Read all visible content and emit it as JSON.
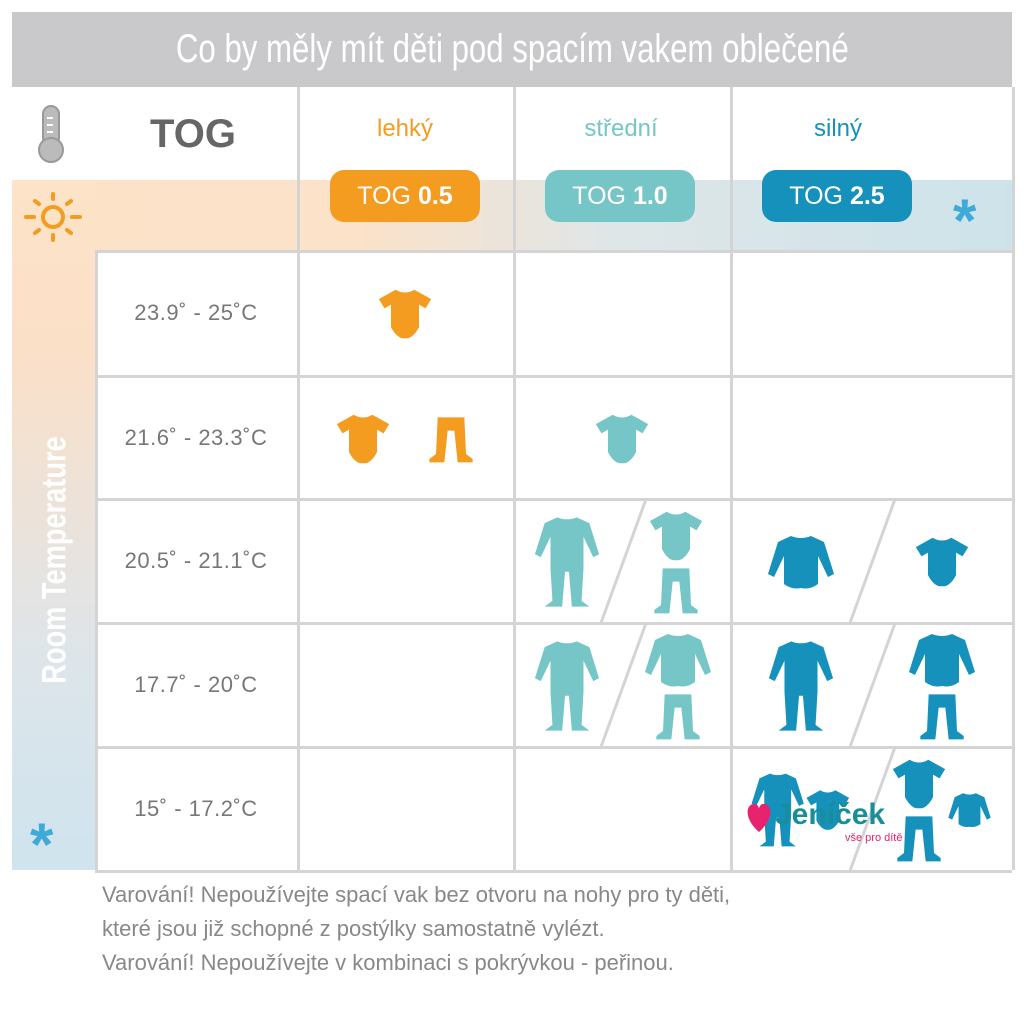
{
  "title": "Co by měly mít děti pod spacím vakem oblečené",
  "tog_label": "TOG",
  "side_label": "Room Temperature",
  "colors": {
    "light": "#f39c1f",
    "medium": "#76c6c8",
    "heavy": "#1591bb"
  },
  "columns": [
    {
      "name": "lehký",
      "pill_prefix": "TOG ",
      "pill_value": "0.5"
    },
    {
      "name": "střední",
      "pill_prefix": "TOG ",
      "pill_value": "1.0"
    },
    {
      "name": "silný",
      "pill_prefix": "TOG ",
      "pill_value": "2.5"
    }
  ],
  "rows": [
    {
      "temp": "23.9˚ - 25˚C",
      "cells": [
        [
          [
            "bodysuit"
          ]
        ],
        [],
        []
      ]
    },
    {
      "temp": "21.6˚ - 23.3˚C",
      "cells": [
        [
          [
            "bodysuit",
            "pants"
          ]
        ],
        [
          [
            "bodysuit"
          ]
        ],
        []
      ]
    },
    {
      "temp": "20.5˚ - 21.1˚C",
      "cells": [
        [],
        [
          [
            "sleepsuit"
          ],
          [
            "bodysuit+pants"
          ]
        ],
        [
          [
            "longsleeve"
          ],
          [
            "bodysuit"
          ]
        ]
      ]
    },
    {
      "temp": "17.7˚ - 20˚C",
      "cells": [
        [],
        [
          [
            "sleepsuit"
          ],
          [
            "longsleeve+pants"
          ]
        ],
        [
          [
            "sleepsuit"
          ],
          [
            "longsleeve+pants"
          ]
        ]
      ]
    },
    {
      "temp": "15˚ - 17.2˚C",
      "cells": [
        [],
        [],
        [
          [
            "sleepsuit",
            "bodysuit"
          ],
          [
            "bodysuit+pants",
            "longsleeve"
          ]
        ]
      ]
    }
  ],
  "warnings": [
    "Varování! Nepoužívejte spací vak bez otvoru na nohy pro ty děti,",
    "které jsou již schopné z postýlky samostatně vylézt.",
    "Varování! Nepoužívejte v kombinaci s pokrývkou - peřinou."
  ],
  "logo": {
    "name": "Jeníček",
    "tagline": "vše pro dítě"
  }
}
